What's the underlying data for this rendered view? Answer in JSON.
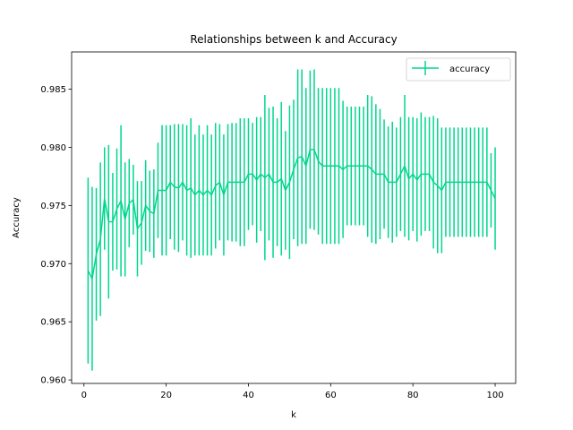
{
  "chart_data": {
    "type": "line",
    "title": "Relationships between k and Accuracy",
    "xlabel": "k",
    "ylabel": "Accuracy",
    "xlim": [
      -3,
      105
    ],
    "ylim": [
      0.9597,
      0.9882
    ],
    "xticks": [
      0,
      20,
      40,
      60,
      80,
      100
    ],
    "xtick_labels": [
      "0",
      "20",
      "40",
      "60",
      "80",
      "100"
    ],
    "yticks": [
      0.96,
      0.965,
      0.97,
      0.975,
      0.98,
      0.985
    ],
    "ytick_labels": [
      "0.960",
      "0.965",
      "0.970",
      "0.975",
      "0.980",
      "0.985"
    ],
    "grid": false,
    "legend_position": "top-right",
    "series": [
      {
        "name": "accuracy",
        "color": "#00d68f",
        "x": [
          1,
          2,
          3,
          4,
          5,
          6,
          7,
          8,
          9,
          10,
          11,
          12,
          13,
          14,
          15,
          16,
          17,
          18,
          19,
          20,
          21,
          22,
          23,
          24,
          25,
          26,
          27,
          28,
          29,
          30,
          31,
          32,
          33,
          34,
          35,
          36,
          37,
          38,
          39,
          40,
          41,
          42,
          43,
          44,
          45,
          46,
          47,
          48,
          49,
          50,
          51,
          52,
          53,
          54,
          55,
          56,
          57,
          58,
          59,
          60,
          61,
          62,
          63,
          64,
          65,
          66,
          67,
          68,
          69,
          70,
          71,
          72,
          73,
          74,
          75,
          76,
          77,
          78,
          79,
          80,
          81,
          82,
          83,
          84,
          85,
          86,
          87,
          88,
          89,
          90,
          91,
          92,
          93,
          94,
          95,
          96,
          97,
          98,
          99,
          100
        ],
        "y": [
          0.9694,
          0.9687,
          0.9708,
          0.9721,
          0.9756,
          0.9736,
          0.9736,
          0.9747,
          0.9754,
          0.9738,
          0.9752,
          0.9755,
          0.973,
          0.9735,
          0.975,
          0.9745,
          0.9743,
          0.9763,
          0.9763,
          0.9763,
          0.977,
          0.9766,
          0.9765,
          0.977,
          0.9763,
          0.9765,
          0.9759,
          0.9763,
          0.9759,
          0.9763,
          0.9759,
          0.9767,
          0.977,
          0.9759,
          0.977,
          0.977,
          0.977,
          0.977,
          0.977,
          0.9777,
          0.9777,
          0.9772,
          0.9777,
          0.9774,
          0.9777,
          0.977,
          0.977,
          0.9773,
          0.9763,
          0.977,
          0.9781,
          0.9791,
          0.9792,
          0.9784,
          0.9798,
          0.9798,
          0.9788,
          0.9784,
          0.9784,
          0.9784,
          0.9784,
          0.9784,
          0.9781,
          0.9784,
          0.9784,
          0.9784,
          0.9784,
          0.9784,
          0.9784,
          0.9781,
          0.9777,
          0.9777,
          0.9777,
          0.977,
          0.977,
          0.977,
          0.9777,
          0.9784,
          0.9773,
          0.9777,
          0.9772,
          0.9777,
          0.9777,
          0.9777,
          0.977,
          0.9767,
          0.9763,
          0.977,
          0.977,
          0.977,
          0.977,
          0.977,
          0.977,
          0.977,
          0.977,
          0.977,
          0.977,
          0.977,
          0.9763,
          0.9756
        ],
        "err": [
          0.008,
          0.0079,
          0.0057,
          0.0066,
          0.0044,
          0.0066,
          0.0042,
          0.0052,
          0.0065,
          0.0049,
          0.0038,
          0.003,
          0.0041,
          0.0036,
          0.0039,
          0.0035,
          0.0038,
          0.0041,
          0.0056,
          0.0056,
          0.0049,
          0.0054,
          0.0055,
          0.005,
          0.0056,
          0.006,
          0.0052,
          0.0056,
          0.0052,
          0.0056,
          0.0052,
          0.0054,
          0.005,
          0.0052,
          0.005,
          0.0051,
          0.0051,
          0.0055,
          0.0055,
          0.0048,
          0.0044,
          0.0054,
          0.0049,
          0.0071,
          0.0057,
          0.0065,
          0.0055,
          0.0066,
          0.0051,
          0.0066,
          0.006,
          0.0076,
          0.0075,
          0.0067,
          0.0068,
          0.0069,
          0.0063,
          0.0067,
          0.0067,
          0.0067,
          0.0067,
          0.0067,
          0.0059,
          0.0051,
          0.0051,
          0.0051,
          0.0051,
          0.0051,
          0.0061,
          0.0063,
          0.006,
          0.0056,
          0.0047,
          0.0048,
          0.0052,
          0.0047,
          0.0049,
          0.0061,
          0.0053,
          0.0049,
          0.0053,
          0.0053,
          0.0049,
          0.0049,
          0.0057,
          0.0058,
          0.0054,
          0.0047,
          0.0047,
          0.0047,
          0.0047,
          0.0047,
          0.0047,
          0.0047,
          0.0047,
          0.0047,
          0.0047,
          0.0047,
          0.0032,
          0.0044
        ]
      }
    ]
  }
}
